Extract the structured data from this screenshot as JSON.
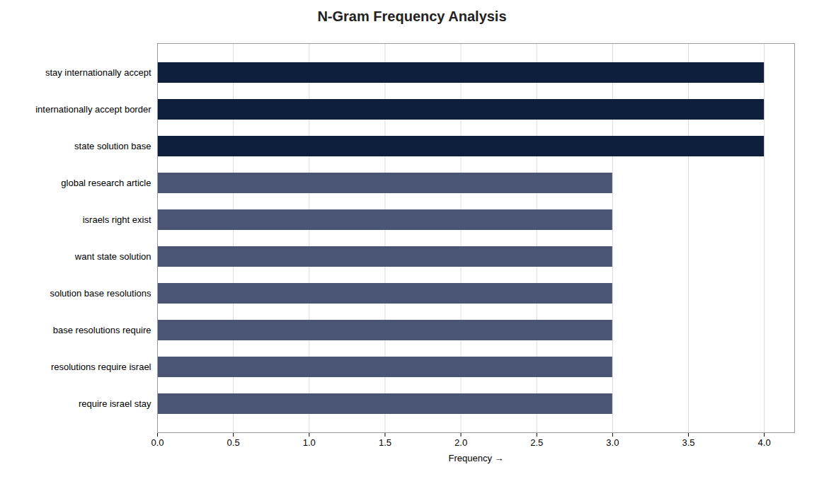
{
  "chart_data": {
    "type": "bar",
    "orientation": "horizontal",
    "title": "N-Gram Frequency Analysis",
    "xlabel": "Frequency",
    "categories": [
      "require israel stay",
      "resolutions require israel",
      "base resolutions require",
      "solution base resolutions",
      "want state solution",
      "israels right exist",
      "global research article",
      "state solution base",
      "internationally accept border",
      "stay internationally accept"
    ],
    "values": [
      3,
      3,
      3,
      3,
      3,
      3,
      3,
      4,
      4,
      4
    ],
    "colors": [
      "#4a5474",
      "#4a5474",
      "#4a5474",
      "#4a5474",
      "#4a5474",
      "#4a5474",
      "#4a5474",
      "#0d1f3c",
      "#0d1f3c",
      "#0d1f3c"
    ],
    "xlim": [
      0,
      4.2
    ],
    "xticks": [
      {
        "value": 0,
        "label": "0.0"
      },
      0.5,
      {
        "value": 1,
        "label": "1.0"
      },
      1.5,
      {
        "value": 2,
        "label": "2.0"
      },
      2.5,
      {
        "value": 3,
        "label": "3.0"
      },
      3.5,
      {
        "value": 4,
        "label": "4.0"
      }
    ],
    "grid": true
  }
}
